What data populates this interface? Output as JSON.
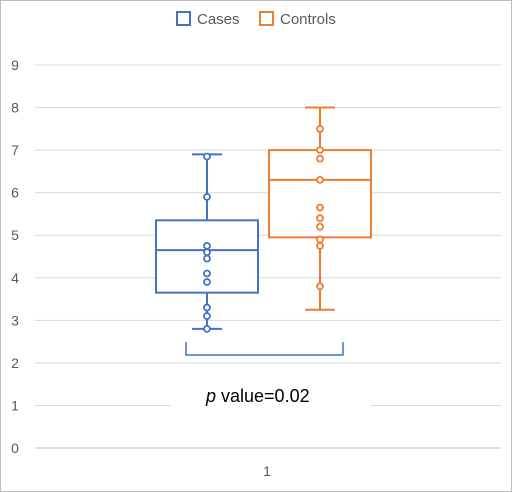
{
  "chart_data": {
    "type": "box",
    "title": "",
    "xlabel": "",
    "ylabel": "",
    "ylim": [
      0,
      9
    ],
    "y_ticks": [
      "0",
      "1",
      "2",
      "3",
      "4",
      "5",
      "6",
      "7",
      "8",
      "9"
    ],
    "categories": [
      "1"
    ],
    "grid": true,
    "legend_position": "top",
    "series": [
      {
        "name": "Cases",
        "color": "#4472C4",
        "whisker_min": 2.8,
        "q1": 3.65,
        "median": 4.65,
        "q3": 5.35,
        "whisker_max": 6.9,
        "points": [
          2.8,
          3.1,
          3.3,
          3.9,
          4.1,
          4.45,
          4.6,
          4.75,
          5.9,
          6.85
        ]
      },
      {
        "name": "Controls",
        "color": "#ED7D31",
        "whisker_min": 3.25,
        "q1": 4.95,
        "median": 6.3,
        "q3": 7.0,
        "whisker_max": 8.0,
        "points": [
          3.8,
          4.75,
          4.9,
          5.2,
          5.4,
          5.65,
          6.3,
          6.8,
          7.0,
          7.5
        ]
      }
    ],
    "annotation": {
      "p_label": "p",
      "value_text": " value=0.02"
    }
  }
}
